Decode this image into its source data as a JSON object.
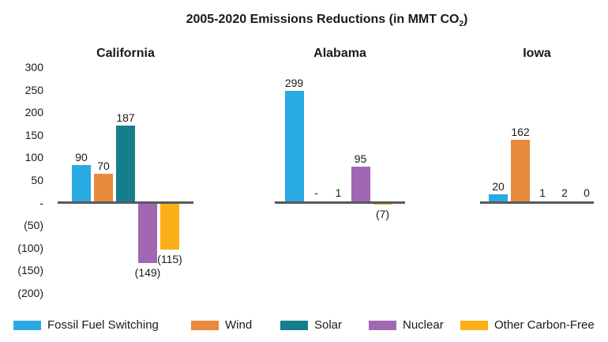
{
  "title": {
    "prefix": "2005-2020 Emissions Reductions (in MMT CO",
    "subscript": "2",
    "suffix": ")"
  },
  "chart_data": {
    "type": "bar",
    "title": "2005-2020 Emissions Reductions (in MMT CO2)",
    "unit": "MMT CO2",
    "series": [
      "Fossil Fuel Switching",
      "Wind",
      "Solar",
      "Nuclear",
      "Other Carbon-Free"
    ],
    "panels": [
      {
        "name": "California",
        "values": [
          90,
          70,
          187,
          -149,
          -115
        ],
        "labels": [
          "90",
          "70",
          "187",
          "(149)",
          "(115)"
        ]
      },
      {
        "name": "Alabama",
        "values": [
          299,
          null,
          1,
          95,
          -7
        ],
        "labels": [
          "299",
          "-",
          "1",
          "95",
          "(7)"
        ]
      },
      {
        "name": "Iowa",
        "values": [
          20,
          162,
          1,
          2,
          0
        ],
        "labels": [
          "20",
          "162",
          "1",
          "2",
          "0"
        ]
      }
    ],
    "y_axis": {
      "tick_labels": [
        "300",
        "250",
        "200",
        "150",
        "100",
        "50",
        "-",
        "(50)",
        "(100)",
        "(150)",
        "(200)"
      ],
      "tick_values": [
        300,
        250,
        200,
        150,
        100,
        50,
        0,
        -50,
        -100,
        -150,
        -200
      ],
      "range": [
        -200,
        300
      ],
      "negative_format": "parentheses",
      "grid": false
    },
    "legend": {
      "position": "bottom",
      "items": [
        {
          "label": "Fossil Fuel Switching",
          "color": "#29ABE2"
        },
        {
          "label": "Wind",
          "color": "#E78A3D"
        },
        {
          "label": "Solar",
          "color": "#157E8C"
        },
        {
          "label": "Nuclear",
          "color": "#A267B3"
        },
        {
          "label": "Other Carbon-Free",
          "color": "#FBB116"
        }
      ]
    },
    "colors": {
      "axis_line": "#58595B",
      "text": "#1A1A1A",
      "background": "#FFFFFF"
    }
  }
}
